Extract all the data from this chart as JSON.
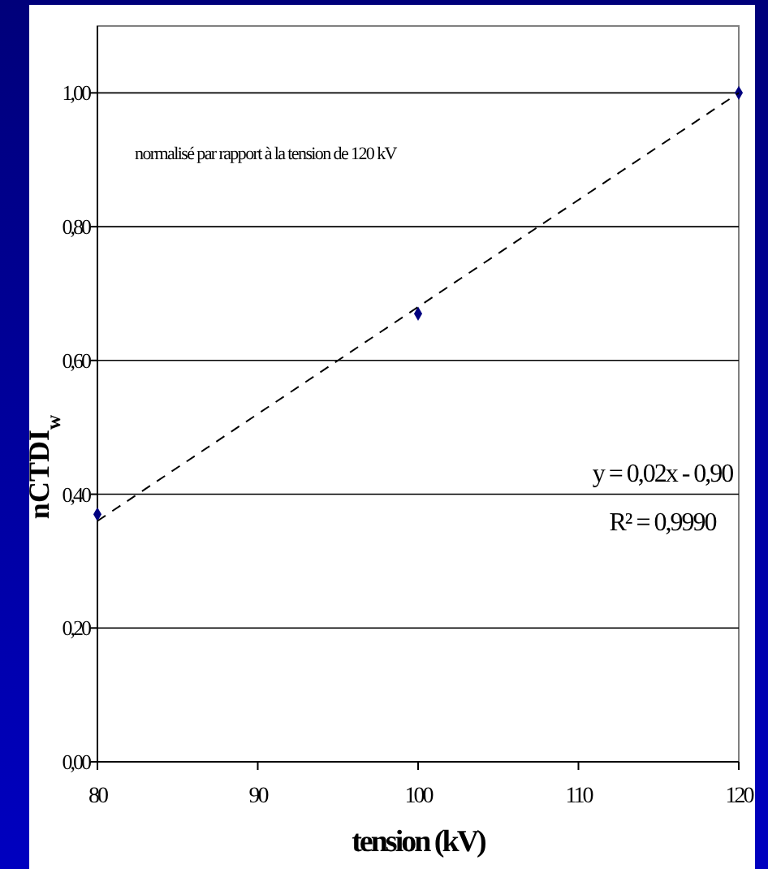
{
  "chart_data": {
    "type": "scatter",
    "xlabel": "tension (kV)",
    "ylabel": "nCTDI$_{w}$",
    "series": [
      {
        "color": "#000080",
        "marker": "diamond",
        "x": [
          80,
          100,
          120
        ],
        "values": [
          0.37,
          0.67,
          1.0
        ]
      },
      {
        "type": "line",
        "color": "#000000",
        "line_style": "dashed",
        "marker": "none",
        "x": [
          80,
          120
        ],
        "values": [
          0.36,
          1.0
        ]
      }
    ],
    "xlim": [
      80,
      120
    ],
    "xticks": [
      80,
      90,
      100,
      110,
      120
    ],
    "ylim": [
      0,
      1.1
    ],
    "yticks": [
      {
        "value": 0,
        "label": "0,00"
      },
      {
        "value": 0.2,
        "label": "0,20"
      },
      {
        "value": 0.4,
        "label": "0,40"
      },
      {
        "value": 0.6,
        "label": "0,60"
      },
      {
        "value": 0.8,
        "label": "0,80"
      },
      {
        "value": 1.0,
        "label": "1,00"
      }
    ],
    "grid": "y",
    "annotations": [
      "normalisé par rapport à la tension de 120 kV",
      "y = 0,02x - 0,90",
      "R² = 0,9990"
    ]
  }
}
